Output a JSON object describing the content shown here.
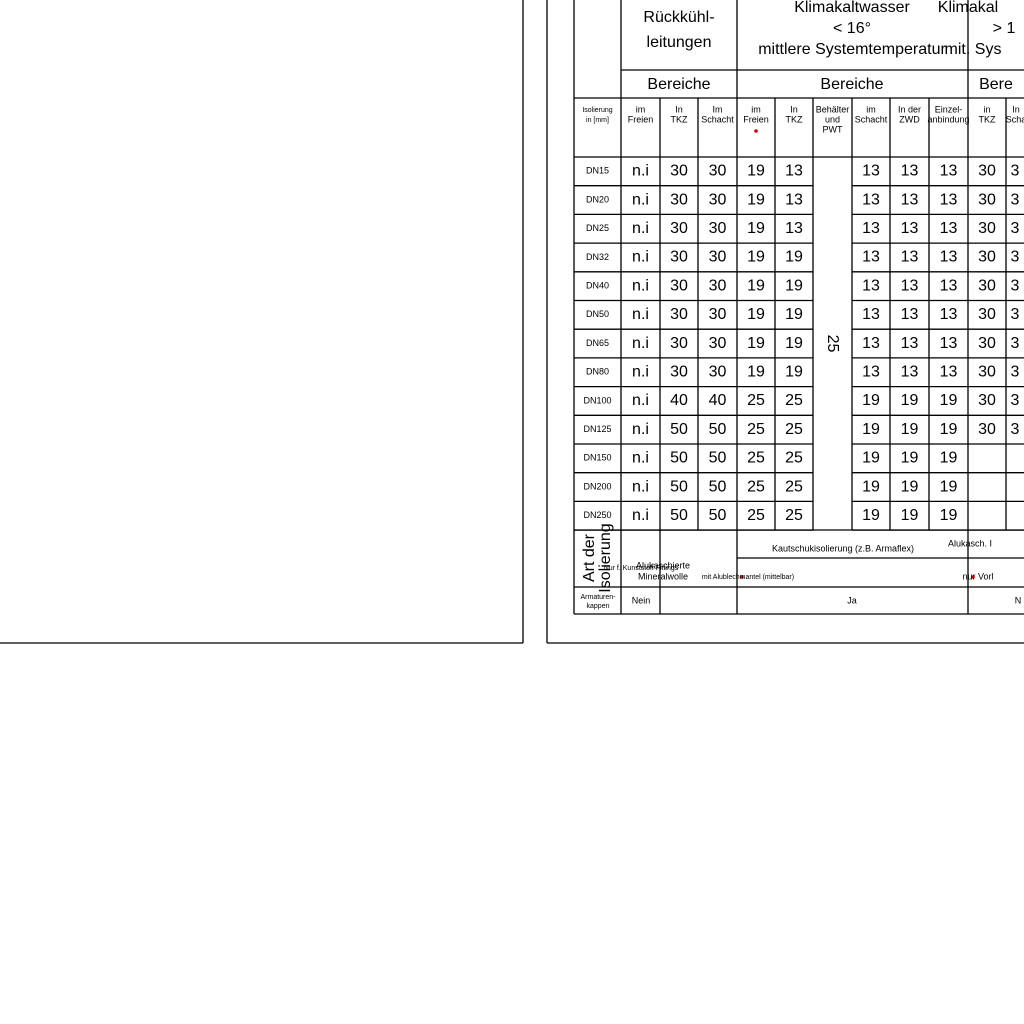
{
  "table": {
    "groups": [
      {
        "title": [
          "Rückkühl-",
          "leitungen"
        ],
        "area": "Bereiche"
      },
      {
        "title": [
          "Klimakaltwasser",
          "< 16°",
          "mittlere Systemtemperatur"
        ],
        "area": "Bereiche"
      },
      {
        "title": [
          "Klimakal",
          "> 1",
          "mit. Sys"
        ],
        "area": "Bere"
      }
    ],
    "columns": [
      [
        "Isolierung",
        "in [mm]"
      ],
      [
        "im",
        "Freien"
      ],
      [
        "In",
        "TKZ"
      ],
      [
        "Im",
        "Schacht"
      ],
      [
        "im",
        "Freien"
      ],
      [
        "In",
        "TKZ"
      ],
      [
        "Behälter",
        "und",
        "PWT"
      ],
      [
        "im",
        "Schacht"
      ],
      [
        "In der",
        "ZWD"
      ],
      [
        "Einzel-",
        "anbindung"
      ],
      [
        "in",
        "TKZ"
      ],
      [
        "In",
        "Scha"
      ]
    ],
    "rows": [
      [
        "DN15",
        "n.i",
        30,
        30,
        19,
        13,
        13,
        13,
        13,
        30,
        3
      ],
      [
        "DN20",
        "n.i",
        30,
        30,
        19,
        13,
        13,
        13,
        13,
        30,
        3
      ],
      [
        "DN25",
        "n.i",
        30,
        30,
        19,
        13,
        13,
        13,
        13,
        30,
        3
      ],
      [
        "DN32",
        "n.i",
        30,
        30,
        19,
        19,
        13,
        13,
        13,
        30,
        3
      ],
      [
        "DN40",
        "n.i",
        30,
        30,
        19,
        19,
        13,
        13,
        13,
        30,
        3
      ],
      [
        "DN50",
        "n.i",
        30,
        30,
        19,
        19,
        13,
        13,
        13,
        30,
        3
      ],
      [
        "DN65",
        "n.i",
        30,
        30,
        19,
        19,
        13,
        13,
        13,
        30,
        3
      ],
      [
        "DN80",
        "n.i",
        30,
        30,
        19,
        19,
        13,
        13,
        13,
        30,
        3
      ],
      [
        "DN100",
        "n.i",
        40,
        40,
        25,
        25,
        19,
        19,
        19,
        30,
        3
      ],
      [
        "DN125",
        "n.i",
        50,
        50,
        25,
        25,
        19,
        19,
        19,
        30,
        3
      ],
      [
        "DN150",
        "n.i",
        50,
        50,
        25,
        25,
        19,
        19,
        19
      ],
      [
        "DN200",
        "n.i",
        50,
        50,
        25,
        25,
        19,
        19,
        19
      ],
      [
        "DN250",
        "n.i",
        50,
        50,
        25,
        25,
        19,
        19,
        19
      ]
    ],
    "merged_value": 25,
    "insulation": {
      "label": [
        "Art der",
        "Isolierung"
      ],
      "plastic": "Nur f. Kunststoff Fittings",
      "mineral": [
        "Alukaschierte",
        "Mineralwolle"
      ],
      "rubber": "Kautschukisolierung (z.B. Armaflex)",
      "rubber_note": "mit Alublechmantel (mittelbar)",
      "group3": "Alukasch. I",
      "group3_note": "nur Vorl"
    },
    "fittings": {
      "label": [
        "Armaturen-",
        "kappen"
      ],
      "values": [
        "Nein",
        "Ja",
        "N"
      ]
    }
  }
}
